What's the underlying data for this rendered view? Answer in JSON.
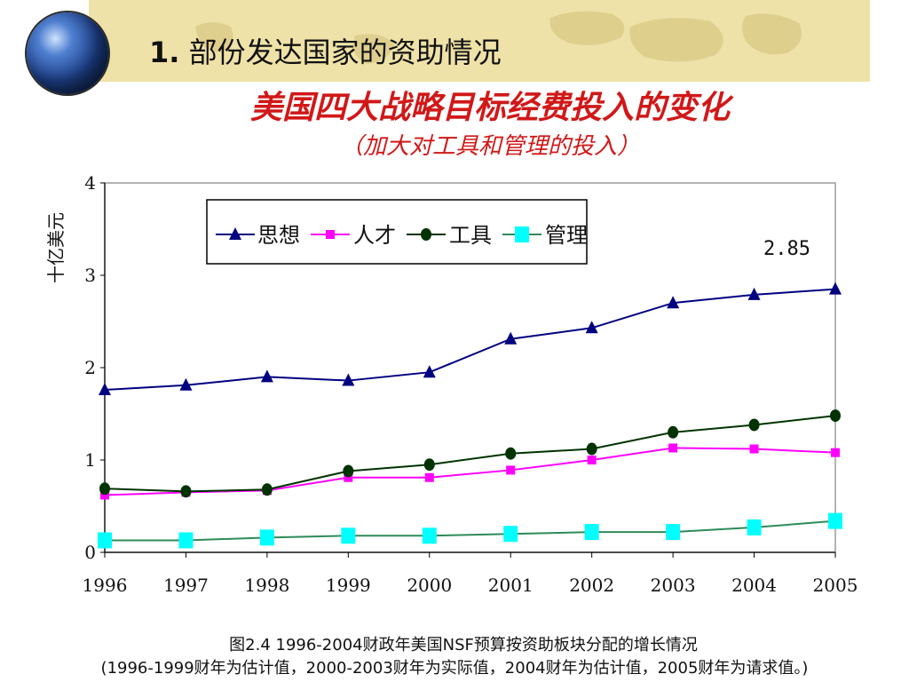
{
  "header": {
    "section_number": "1.",
    "section_title": "部份发达国家的资助情况",
    "chart_title": "美国四大战略目标经费投入的变化",
    "chart_subtitle": "（加大对工具和管理的投入）"
  },
  "caption": {
    "line1": "图2.4  1996-2004财政年美国NSF预算按资助板块分配的增长情况",
    "line2": "(1996-1999财年为估计值，2000-2003财年为实际值，2004财年为估计值，2005财年为请求值。)"
  },
  "colors": {
    "banner": "#efe2a8",
    "title_red": "#d11818"
  },
  "chart_data": {
    "type": "line",
    "ylabel": "十亿美元",
    "ylim": [
      0,
      4
    ],
    "yticks": [
      "0",
      "1",
      "2",
      "3",
      "4"
    ],
    "categories": [
      "1996",
      "1997",
      "1998",
      "1999",
      "2000",
      "2001",
      "2002",
      "2003",
      "2004",
      "2005"
    ],
    "annotation": "2.85",
    "legend_position": "top-left",
    "series": [
      {
        "name": "思想",
        "color": "#000080",
        "marker": "triangle",
        "values": [
          1.76,
          1.81,
          1.9,
          1.86,
          1.95,
          2.31,
          2.43,
          2.7,
          2.79,
          2.85
        ]
      },
      {
        "name": "人才",
        "color": "#ff00ff",
        "marker": "square",
        "values": [
          0.62,
          0.65,
          0.67,
          0.81,
          0.81,
          0.89,
          1.0,
          1.13,
          1.12,
          1.08
        ]
      },
      {
        "name": "工具",
        "color": "#003300",
        "marker": "circle",
        "values": [
          0.69,
          0.66,
          0.68,
          0.88,
          0.95,
          1.07,
          1.12,
          1.3,
          1.38,
          1.48
        ]
      },
      {
        "name": "管理",
        "color": "#2e8b57",
        "marker_color": "#00ffff",
        "marker": "square-large",
        "values": [
          0.13,
          0.13,
          0.16,
          0.18,
          0.18,
          0.2,
          0.22,
          0.22,
          0.27,
          0.34
        ]
      }
    ]
  }
}
